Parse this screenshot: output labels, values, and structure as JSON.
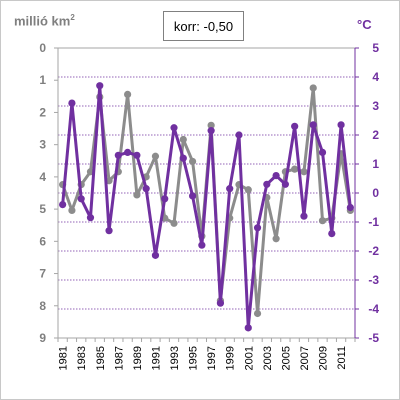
{
  "header": {
    "left_unit_text": "millió km",
    "left_unit_sup": "2",
    "right_unit": "°C",
    "correlation_label": "korr: -0,50"
  },
  "chart_data": {
    "type": "line",
    "categories": [
      "1981",
      "1982",
      "1983",
      "1984",
      "1985",
      "1986",
      "1987",
      "1988",
      "1989",
      "1990",
      "1991",
      "1992",
      "1993",
      "1994",
      "1995",
      "1996",
      "1997",
      "1998",
      "1999",
      "2000",
      "2001",
      "2002",
      "2003",
      "2004",
      "2005",
      "2006",
      "2007",
      "2008",
      "2009",
      "2010",
      "2011",
      "2012"
    ],
    "xtick_labels": [
      "1981",
      "1983",
      "1985",
      "1987",
      "1989",
      "1991",
      "1993",
      "1995",
      "1997",
      "1999",
      "2001",
      "2003",
      "2005",
      "2007",
      "2009",
      "2011"
    ],
    "left_axis": {
      "range": [
        0,
        9
      ],
      "inverted": true,
      "ticks": [
        "0",
        "1",
        "2",
        "3",
        "4",
        "5",
        "6",
        "7",
        "8",
        "9"
      ],
      "unit_text": "millió km",
      "unit_sup": "2"
    },
    "right_axis": {
      "range": [
        -5,
        5
      ],
      "ticks": [
        "5",
        "4",
        "3",
        "2",
        "1",
        "0",
        "-1",
        "-2",
        "-3",
        "-4",
        "-5"
      ],
      "unit": "°C"
    },
    "series": [
      {
        "axis": "left",
        "color": "#8c8c8c",
        "values": [
          4.24,
          5.04,
          4.24,
          3.84,
          1.52,
          4.12,
          3.84,
          1.44,
          4.56,
          4.0,
          3.36,
          5.28,
          5.44,
          2.84,
          3.52,
          5.84,
          2.4,
          7.84,
          5.28,
          4.24,
          4.4,
          8.24,
          4.64,
          5.92,
          3.84,
          3.76,
          3.84,
          1.24,
          5.36,
          5.28,
          3.28,
          5.04
        ]
      },
      {
        "axis": "right",
        "color": "#7030a0",
        "values": [
          -0.4,
          3.1,
          -0.2,
          -0.85,
          3.7,
          -1.3,
          1.3,
          1.4,
          1.3,
          0.15,
          -2.15,
          -0.2,
          2.25,
          1.2,
          -0.1,
          -1.8,
          2.15,
          -3.8,
          0.15,
          2.0,
          -4.65,
          -1.2,
          0.3,
          0.6,
          0.3,
          2.3,
          -0.8,
          2.35,
          1.4,
          -1.4,
          2.35,
          -0.5
        ]
      }
    ],
    "grid": "horizontal dotted at right-axis ticks"
  }
}
